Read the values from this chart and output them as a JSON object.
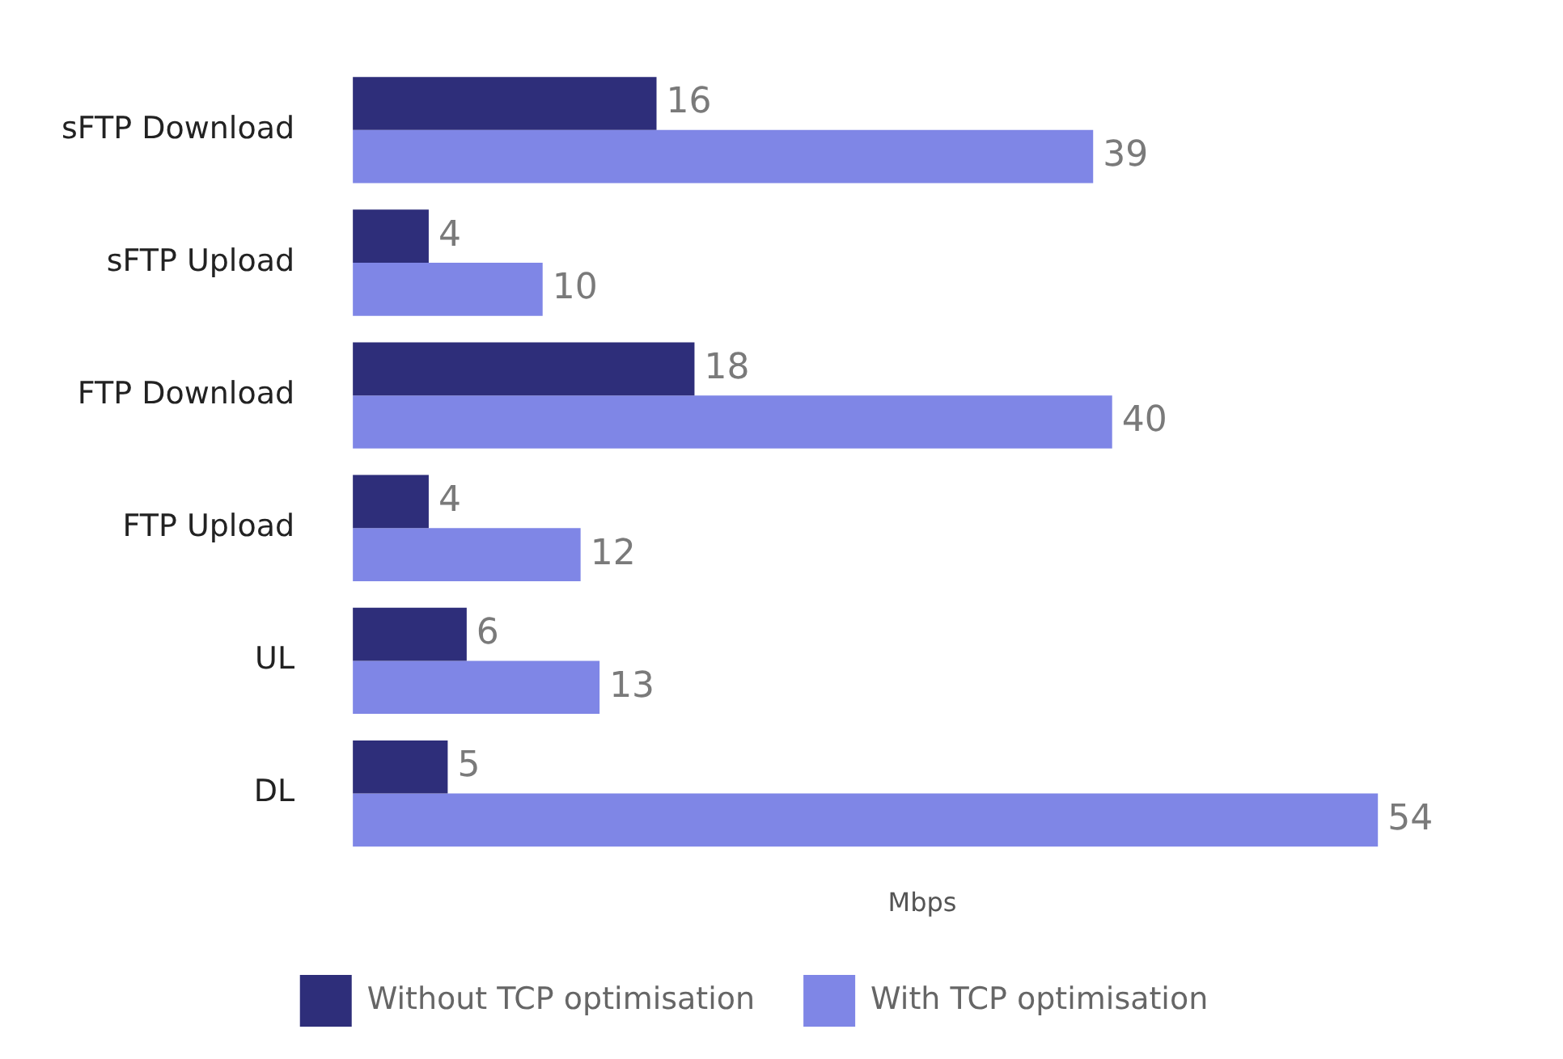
{
  "chart_data": {
    "type": "bar",
    "orientation": "horizontal",
    "xlabel": "Mbps",
    "categories": [
      "sFTP Download",
      "sFTP Upload",
      "FTP Download",
      "FTP Upload",
      "UL",
      "DL"
    ],
    "series": [
      {
        "name": "Without TCP optimisation",
        "color": "#2e2e7a",
        "values": [
          16,
          4,
          18,
          4,
          6,
          5
        ]
      },
      {
        "name": "With TCP optimisation",
        "color": "#7f86e6",
        "values": [
          39,
          10,
          40,
          12,
          13,
          54
        ]
      }
    ],
    "data_labels": true,
    "grid": false,
    "legend": "bottom"
  }
}
